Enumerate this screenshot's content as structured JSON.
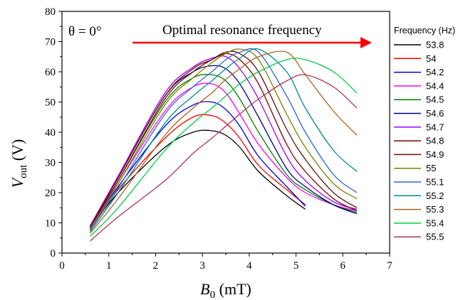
{
  "chart_data": {
    "type": "line",
    "theta_label": "θ = 0°",
    "annotation": "Optimal resonance frequency",
    "xlabel_main": "B",
    "xlabel_sub": "0",
    "xlabel_unit": " (mT)",
    "ylabel_main": "V",
    "ylabel_sub": "out",
    "ylabel_unit": " (V)",
    "xlim": [
      0,
      7
    ],
    "ylim": [
      0,
      80
    ],
    "xticks": [
      0,
      1,
      2,
      3,
      4,
      5,
      6,
      7
    ],
    "yticks": [
      0,
      10,
      20,
      30,
      40,
      50,
      60,
      70,
      80
    ],
    "legend_title": "Frequency (Hz)",
    "legend_position": "right-outside",
    "x": [
      0.6,
      1.2,
      2.2,
      2.8,
      3.2,
      3.5,
      3.8,
      4.2,
      4.8,
      5.2,
      5.8,
      6.3
    ],
    "series": [
      {
        "name": "53.8",
        "color": "#000000",
        "values": [
          8.0,
          20.0,
          35.0,
          40.0,
          40.5,
          39.0,
          35.0,
          27.0,
          19.0,
          14.5,
          null,
          null
        ]
      },
      {
        "name": "54",
        "color": "#ff0000",
        "values": [
          7.8,
          21.0,
          38.0,
          45.0,
          45.5,
          43.0,
          38.0,
          29.0,
          21.0,
          16.0,
          null,
          null
        ]
      },
      {
        "name": "54.2",
        "color": "#0000cc",
        "values": [
          8.2,
          22.0,
          42.0,
          49.0,
          50.0,
          47.5,
          42.0,
          32.0,
          22.0,
          15.5,
          null,
          null
        ]
      },
      {
        "name": "54.4",
        "color": "#ff00ff",
        "values": [
          8.0,
          23.0,
          47.0,
          55.0,
          56.0,
          53.0,
          46.0,
          36.0,
          25.0,
          20.0,
          16.0,
          14.0
        ]
      },
      {
        "name": "54.5",
        "color": "#008000",
        "values": [
          8.5,
          24.0,
          50.0,
          58.0,
          59.0,
          57.0,
          51.0,
          40.0,
          26.0,
          21.0,
          16.0,
          13.5
        ]
      },
      {
        "name": "54.6",
        "color": "#000080",
        "values": [
          8.8,
          25.0,
          52.0,
          60.0,
          62.0,
          61.0,
          56.0,
          45.0,
          28.0,
          22.0,
          16.0,
          13.0
        ]
      },
      {
        "name": "54.7",
        "color": "#9900ff",
        "values": [
          9.0,
          25.5,
          53.0,
          61.5,
          64.5,
          65.0,
          61.0,
          51.0,
          32.0,
          24.0,
          17.0,
          14.5
        ]
      },
      {
        "name": "54.8",
        "color": "#800000",
        "values": [
          8.5,
          25.0,
          52.0,
          61.0,
          64.0,
          66.0,
          64.0,
          56.0,
          36.0,
          27.0,
          18.0,
          14.0
        ]
      },
      {
        "name": "54.9",
        "color": "#5c1010",
        "values": [
          8.2,
          24.0,
          51.0,
          60.0,
          64.0,
          66.5,
          66.0,
          60.0,
          41.0,
          31.0,
          20.0,
          15.0
        ]
      },
      {
        "name": "55",
        "color": "#808000",
        "values": [
          8.0,
          23.0,
          49.0,
          58.0,
          63.0,
          66.0,
          67.5,
          64.0,
          46.0,
          35.0,
          23.0,
          18.0
        ]
      },
      {
        "name": "55.1",
        "color": "#3366cc",
        "values": [
          7.5,
          21.5,
          46.0,
          55.0,
          60.0,
          64.0,
          66.5,
          66.5,
          52.0,
          40.0,
          26.0,
          20.0
        ]
      },
      {
        "name": "55.2",
        "color": "#008b8b",
        "values": [
          7.0,
          20.0,
          43.0,
          52.0,
          57.0,
          61.0,
          64.5,
          67.5,
          60.0,
          48.0,
          34.0,
          27.0
        ]
      },
      {
        "name": "55.3",
        "color": "#b06020",
        "values": [
          6.5,
          18.0,
          39.0,
          48.0,
          53.0,
          57.5,
          61.0,
          65.0,
          66.5,
          59.0,
          47.0,
          39.0
        ]
      },
      {
        "name": "55.4",
        "color": "#00cc44",
        "values": [
          5.5,
          15.0,
          34.0,
          43.0,
          48.0,
          52.0,
          56.0,
          60.0,
          64.0,
          64.0,
          60.0,
          53.0
        ]
      },
      {
        "name": "55.5",
        "color": "#b03060",
        "values": [
          4.0,
          12.0,
          24.0,
          33.0,
          38.0,
          42.0,
          46.0,
          51.0,
          57.0,
          59.0,
          55.0,
          48.0
        ]
      }
    ]
  }
}
